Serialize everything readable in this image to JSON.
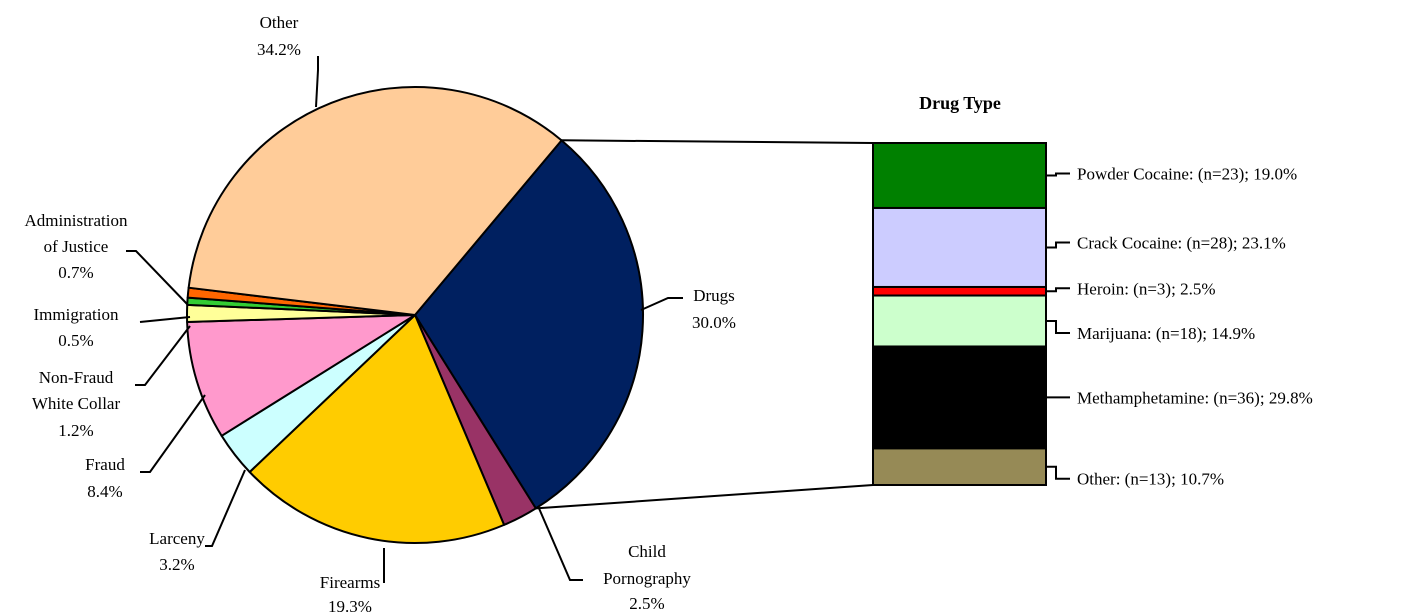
{
  "chart_data": [
    {
      "type": "pie",
      "title": "",
      "slices": [
        {
          "label": "Drugs",
          "value": 30.0,
          "value_label": "30.0%",
          "color": "#002060"
        },
        {
          "label": "Child Pornography",
          "value": 2.5,
          "value_label": "2.5%",
          "color": "#993366"
        },
        {
          "label": "Firearms",
          "value": 19.3,
          "value_label": "19.3%",
          "color": "#FFCC00"
        },
        {
          "label": "Larceny",
          "value": 3.2,
          "value_label": "3.2%",
          "color": "#CCFFFF"
        },
        {
          "label": "Fraud",
          "value": 8.4,
          "value_label": "8.4%",
          "color": "#FF99CC"
        },
        {
          "label": "Non-Fraud White Collar",
          "value": 1.2,
          "value_label": "1.2%",
          "color": "#FFFF99"
        },
        {
          "label": "Immigration",
          "value": 0.5,
          "value_label": "0.5%",
          "color": "#33CC33"
        },
        {
          "label": "Administration of Justice",
          "value": 0.7,
          "value_label": "0.7%",
          "color": "#FF6600"
        },
        {
          "label": "Other",
          "value": 34.2,
          "value_label": "34.2%",
          "color": "#FFCC99"
        }
      ]
    },
    {
      "type": "bar",
      "stacked": true,
      "title": "Drug Type",
      "segments": [
        {
          "label": "Powder Cocaine",
          "n": 23,
          "percent": 19.0,
          "text": "Powder Cocaine:  (n=23); 19.0%",
          "color": "#008000"
        },
        {
          "label": "Crack Cocaine",
          "n": 28,
          "percent": 23.1,
          "text": "Crack Cocaine:  (n=28); 23.1%",
          "color": "#CCCCFF"
        },
        {
          "label": "Heroin",
          "n": 3,
          "percent": 2.5,
          "text": "Heroin:  (n=3); 2.5%",
          "color": "#FF0000"
        },
        {
          "label": "Marijuana",
          "n": 18,
          "percent": 14.9,
          "text": "Marijuana:  (n=18); 14.9%",
          "color": "#CCFFCC"
        },
        {
          "label": "Methamphetamine",
          "n": 36,
          "percent": 29.8,
          "text": "Methamphetamine:  (n=36); 29.8%",
          "color": "#000000"
        },
        {
          "label": "Other",
          "n": 13,
          "percent": 10.7,
          "text": "Other:  (n=13); 10.7%",
          "color": "#968A56"
        }
      ]
    }
  ]
}
